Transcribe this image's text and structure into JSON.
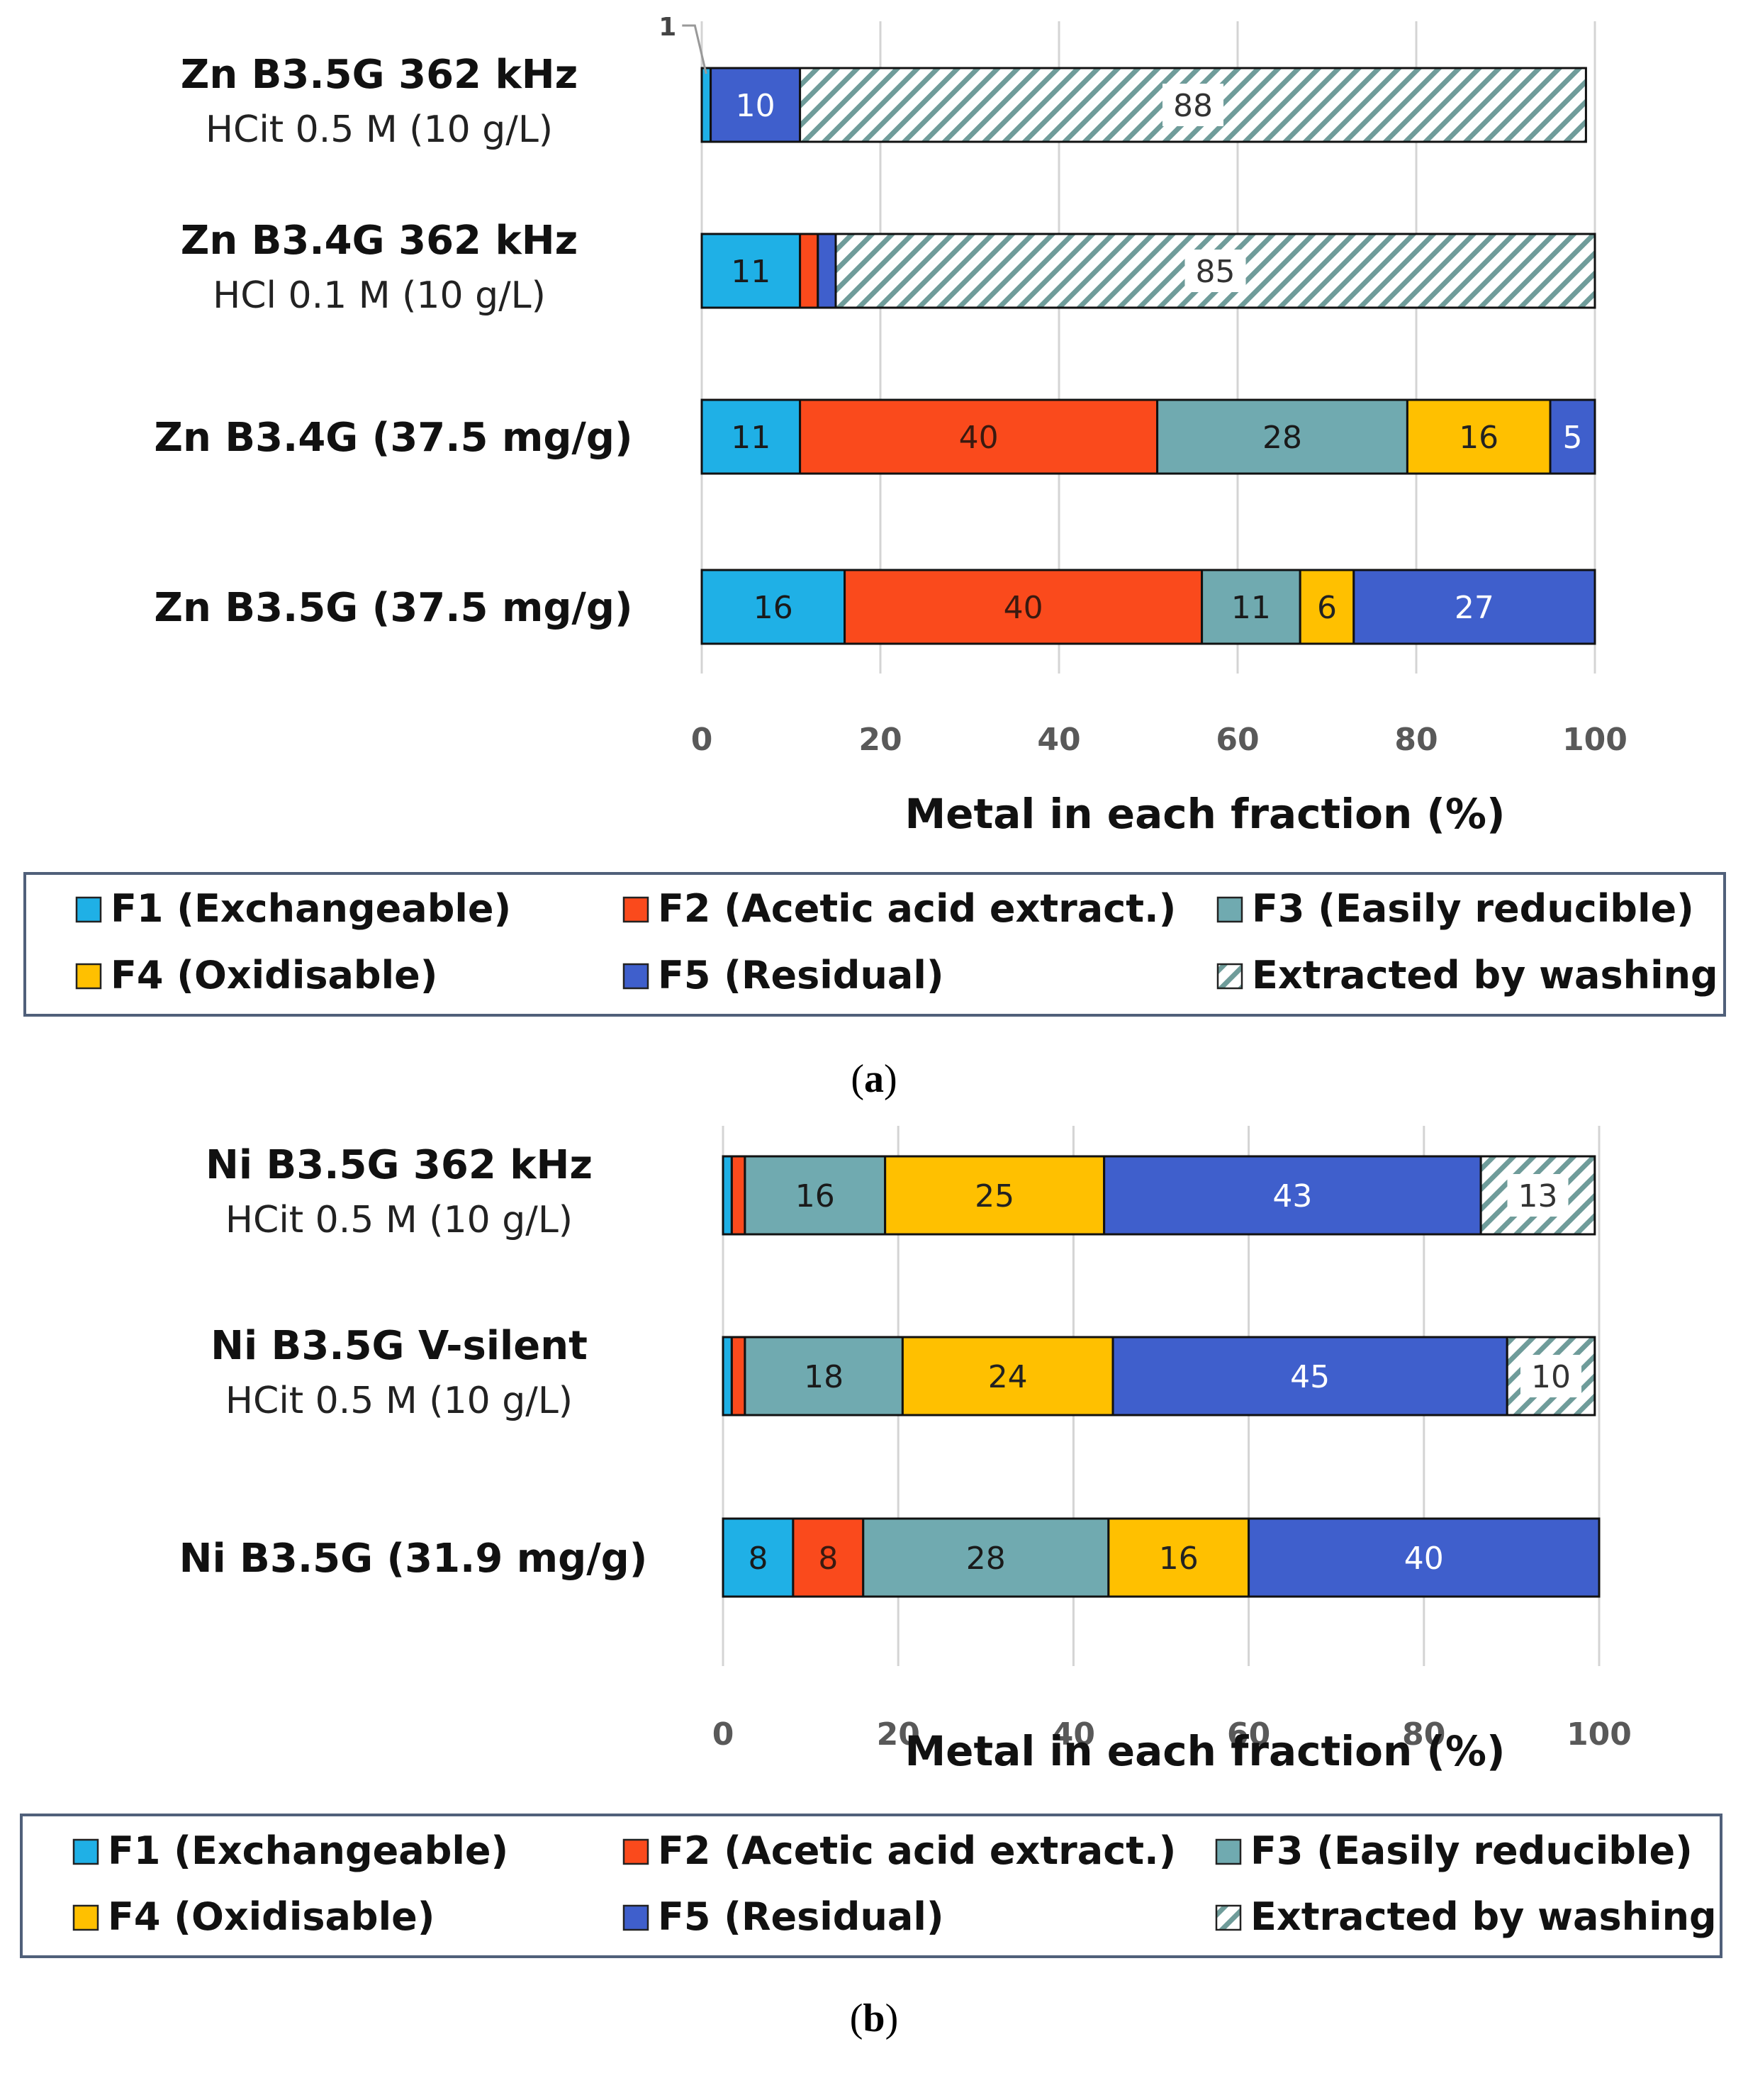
{
  "colors": {
    "F1": "#1fb0e6",
    "F2": "#fa4a1c",
    "F3": "#70aab0",
    "F4": "#ffc000",
    "F5": "#3f5fcc",
    "washing_bg": "#ffffff",
    "washing_hatch": "#6f9c9a",
    "legend_border": "#50607a"
  },
  "legend": {
    "items": [
      {
        "key": "F1",
        "label": "F1 (Exchangeable)"
      },
      {
        "key": "F2",
        "label": "F2 (Acetic acid extract.)"
      },
      {
        "key": "F3",
        "label": "F3 (Easily reducible)"
      },
      {
        "key": "F4",
        "label": "F4 (Oxidisable)"
      },
      {
        "key": "F5",
        "label": "F5 (Residual)"
      },
      {
        "key": "W",
        "label": "Extracted by washing"
      }
    ]
  },
  "captions": [
    {
      "open": "(",
      "letter": "a",
      "close": ")"
    },
    {
      "open": "(",
      "letter": "b",
      "close": ")"
    }
  ],
  "chart_data": [
    {
      "type": "bar",
      "orientation": "horizontal",
      "stacked": true,
      "panel": "a",
      "xlabel": "Metal in each fraction (%)",
      "xlim": [
        0,
        100
      ],
      "xticks": [
        0,
        20,
        40,
        60,
        80,
        100
      ],
      "series_keys": [
        "F1",
        "F2",
        "F3",
        "F4",
        "F5",
        "W"
      ],
      "bars": [
        {
          "name": "Zn B3.5G 362 kHz",
          "subtitle": "HCit 0.5 M (10 g/L)",
          "values": [
            1,
            0,
            0,
            0,
            10,
            88
          ],
          "labels": [
            "",
            "",
            "",
            "",
            "10",
            "88"
          ],
          "callout": "1"
        },
        {
          "name": "Zn B3.4G 362 kHz",
          "subtitle": "HCl 0.1 M (10 g/L)",
          "values": [
            11,
            2,
            0,
            0,
            2,
            85
          ],
          "labels": [
            "11",
            "",
            "",
            "",
            "",
            "85"
          ]
        },
        {
          "name": "Zn B3.4G (37.5 mg/g)",
          "subtitle": "",
          "values": [
            11,
            40,
            28,
            16,
            5,
            0
          ],
          "labels": [
            "11",
            "40",
            "28",
            "16",
            "5",
            ""
          ]
        },
        {
          "name": "Zn B3.5G (37.5 mg/g)",
          "subtitle": "",
          "values": [
            16,
            40,
            11,
            6,
            27,
            0
          ],
          "labels": [
            "16",
            "40",
            "11",
            "6",
            "27",
            ""
          ]
        }
      ]
    },
    {
      "type": "bar",
      "orientation": "horizontal",
      "stacked": true,
      "panel": "b",
      "xlabel": "Metal in each fraction (%)",
      "xlim": [
        0,
        100
      ],
      "xticks": [
        0,
        20,
        40,
        60,
        80,
        100
      ],
      "series_keys": [
        "F1",
        "F2",
        "F3",
        "F4",
        "F5",
        "W"
      ],
      "bars": [
        {
          "name": "Ni B3.5G 362 kHz",
          "subtitle": "HCit 0.5 M (10 g/L)",
          "values": [
            1,
            1.5,
            16,
            25,
            43,
            13
          ],
          "labels": [
            "",
            "",
            "16",
            "25",
            "43",
            "13"
          ]
        },
        {
          "name": "Ni B3.5G V-silent",
          "subtitle": "HCit 0.5 M (10 g/L)",
          "values": [
            1,
            1.5,
            18,
            24,
            45,
            10
          ],
          "labels": [
            "",
            "",
            "18",
            "24",
            "45",
            "10"
          ]
        },
        {
          "name": "Ni B3.5G (31.9 mg/g)",
          "subtitle": "",
          "values": [
            8,
            8,
            28,
            16,
            40,
            0
          ],
          "labels": [
            "8",
            "8",
            "28",
            "16",
            "40",
            ""
          ]
        }
      ]
    }
  ]
}
